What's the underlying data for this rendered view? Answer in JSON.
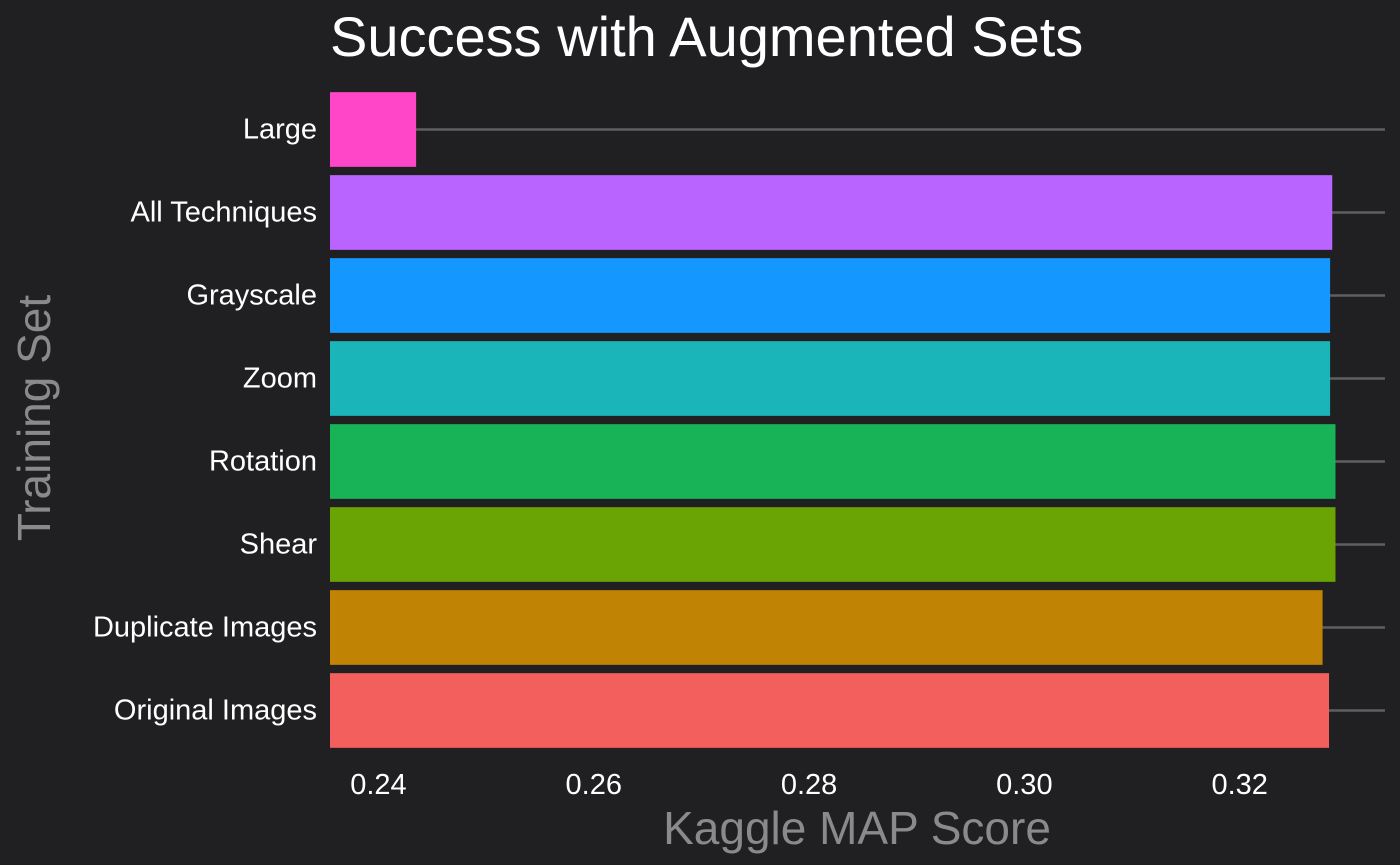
{
  "chart_data": {
    "type": "bar",
    "orientation": "horizontal",
    "title": "Success with Augmented Sets",
    "xlabel": "Kaggle MAP Score",
    "ylabel": "Training Set",
    "categories": [
      "Original Images",
      "Duplicate Images",
      "Shear",
      "Rotation",
      "Zoom",
      "Grayscale",
      "All Techniques",
      "Large"
    ],
    "values": [
      0.3283,
      0.3277,
      0.3289,
      0.3289,
      0.3284,
      0.3284,
      0.3286,
      0.2435
    ],
    "colors": [
      "#f25f5c",
      "#c08304",
      "#6aa304",
      "#17b356",
      "#19b5b8",
      "#1497ff",
      "#b964ff",
      "#ff46c8"
    ],
    "xlim": [
      0.2355,
      0.3335
    ],
    "xticks": [
      0.24,
      0.26,
      0.28,
      0.3,
      0.32
    ],
    "xtick_labels": [
      "0.24",
      "0.26",
      "0.28",
      "0.30",
      "0.32"
    ],
    "grid": "horizontal major lines only",
    "legend": "none"
  }
}
